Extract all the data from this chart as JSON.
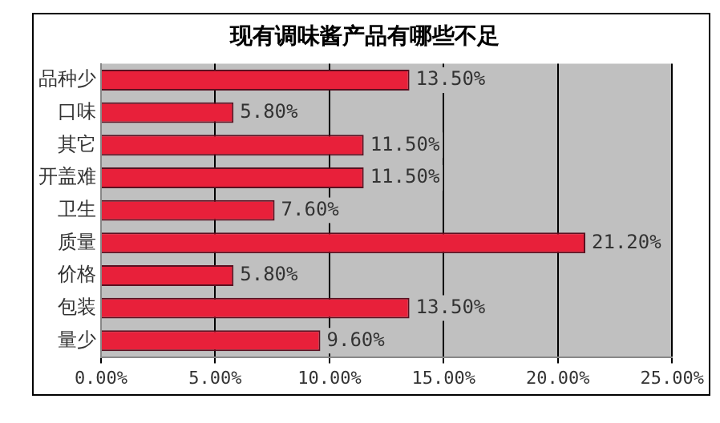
{
  "chart_data": {
    "type": "bar",
    "orientation": "horizontal",
    "title": "现有调味酱产品有哪些不足",
    "categories": [
      "品种少",
      "口味",
      "其它",
      "开盖难",
      "卫生",
      "质量",
      "价格",
      "包装",
      "量少"
    ],
    "values": [
      13.5,
      5.8,
      11.5,
      11.5,
      7.6,
      21.2,
      5.8,
      13.5,
      9.6
    ],
    "value_labels": [
      "13.50%",
      "5.80%",
      "11.50%",
      "11.50%",
      "7.60%",
      "21.20%",
      "5.80%",
      "13.50%",
      "9.60%"
    ],
    "color": "#e8203a",
    "xlim": [
      0,
      25
    ],
    "xticks": [
      {
        "value": 0,
        "label": "0.00%"
      },
      {
        "value": 5,
        "label": "5.00%"
      },
      {
        "value": 10,
        "label": "10.00%"
      },
      {
        "value": 15,
        "label": "15.00%"
      },
      {
        "value": 20,
        "label": "20.00%"
      },
      {
        "value": 25,
        "label": "25.00%"
      }
    ],
    "grid": "x",
    "legend": false
  }
}
